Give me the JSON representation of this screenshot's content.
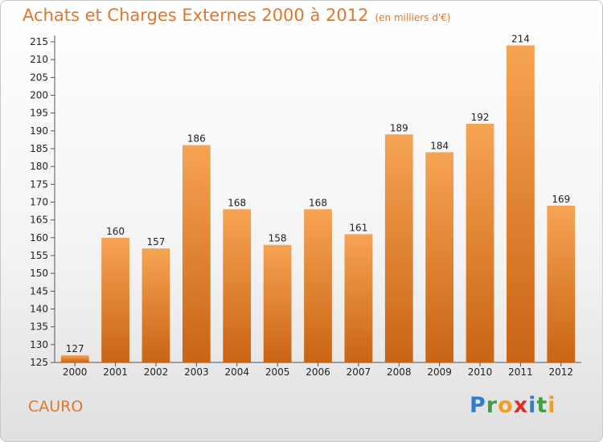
{
  "header": {
    "title": "Achats et Charges Externes 2000 à 2012",
    "unit": "(en milliers d'€)"
  },
  "footer": {
    "commune": "CAURO"
  },
  "logo": {
    "letters": [
      "P",
      "r",
      "o",
      "x",
      "i",
      "t",
      "i"
    ]
  },
  "colors": {
    "accent": "#e0772b",
    "bar_top": "#f6a453",
    "bar_bottom": "#c96414"
  },
  "chart_data": {
    "type": "bar",
    "title": "Achats et Charges Externes 2000 à 2012",
    "subtitle": "(en milliers d'€)",
    "categories": [
      "2000",
      "2001",
      "2002",
      "2003",
      "2004",
      "2005",
      "2006",
      "2007",
      "2008",
      "2009",
      "2010",
      "2011",
      "2012"
    ],
    "values": [
      127,
      160,
      157,
      186,
      168,
      158,
      168,
      161,
      189,
      184,
      192,
      214,
      169
    ],
    "ylim": [
      125,
      215
    ],
    "yticks": [
      125,
      130,
      135,
      140,
      145,
      150,
      155,
      160,
      165,
      170,
      175,
      180,
      185,
      190,
      195,
      200,
      205,
      210,
      215
    ],
    "grid": false,
    "legend": "none"
  }
}
